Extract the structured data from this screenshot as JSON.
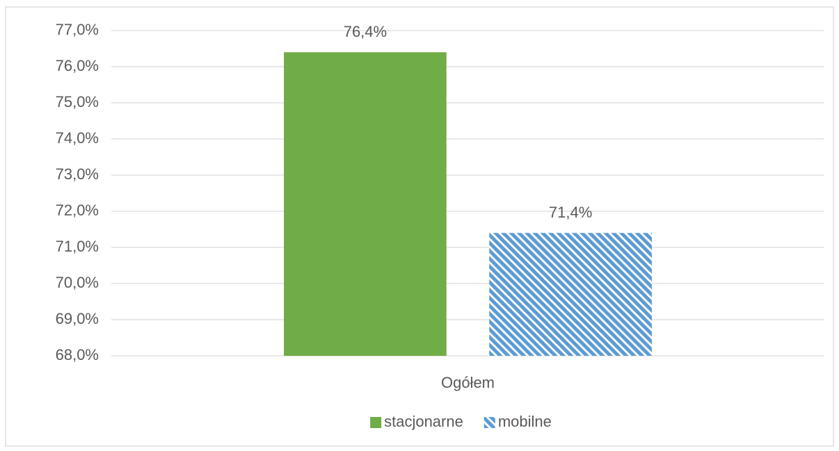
{
  "chart_data": {
    "type": "bar",
    "categories": [
      "Ogółem"
    ],
    "series": [
      {
        "name": "stacjonarne",
        "color": "#70ad47",
        "values": [
          76.4
        ],
        "value_labels": [
          "76,4%"
        ]
      },
      {
        "name": "mobilne",
        "color": "#5b9bd5",
        "pattern": "diagonal",
        "values": [
          71.4
        ],
        "value_labels": [
          "71,4%"
        ]
      }
    ],
    "ylim": [
      68,
      77
    ],
    "yticks": [
      {
        "value": 68,
        "label": "68,0%"
      },
      {
        "value": 69,
        "label": "69,0%"
      },
      {
        "value": 70,
        "label": "70,0%"
      },
      {
        "value": 71,
        "label": "71,0%"
      },
      {
        "value": 72,
        "label": "72,0%"
      },
      {
        "value": 73,
        "label": "73,0%"
      },
      {
        "value": 74,
        "label": "74,0%"
      },
      {
        "value": 75,
        "label": "75,0%"
      },
      {
        "value": 76,
        "label": "76,0%"
      },
      {
        "value": 77,
        "label": "77,0%"
      }
    ],
    "grid": true,
    "legend": "bottom"
  }
}
